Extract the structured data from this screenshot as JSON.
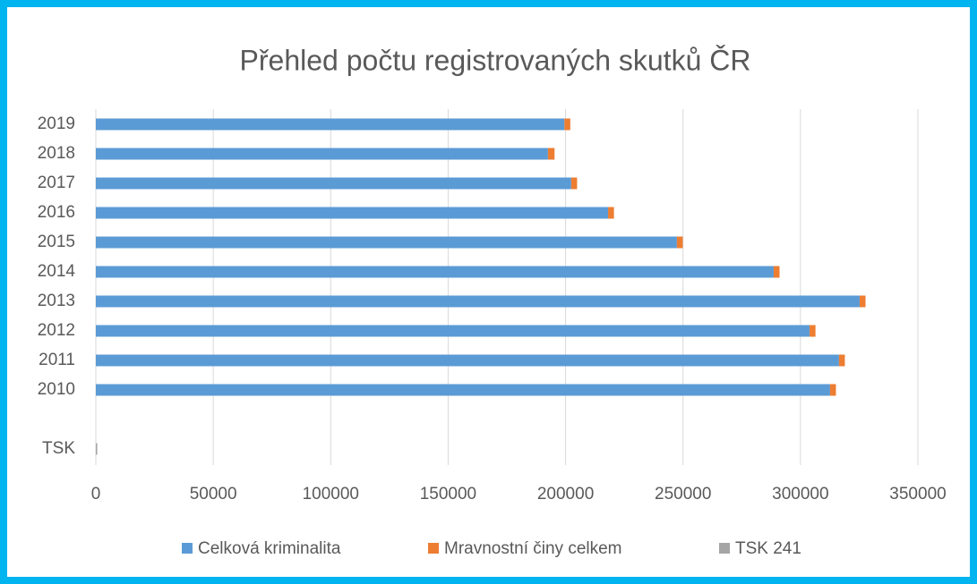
{
  "chart_data": {
    "type": "stacked-barh",
    "title": "Přehled počtu registrovaných skutků ČR",
    "categories": [
      "TSK",
      null,
      "2010",
      "2011",
      "2012",
      "2013",
      "2014",
      "2015",
      "2016",
      "2017",
      "2018",
      "2019"
    ],
    "series": [
      {
        "name": "Celková kriminalita",
        "color": "#5b9bd5",
        "values": [
          null,
          null,
          312600,
          316400,
          303900,
          325200,
          288600,
          247400,
          218100,
          202400,
          192500,
          199500
        ]
      },
      {
        "name": "Mravnostní činy celkem",
        "color": "#ed7d31",
        "values": [
          null,
          null,
          2500,
          2500,
          2500,
          2500,
          2500,
          2500,
          2500,
          2500,
          2800,
          2500
        ]
      },
      {
        "name": "TSK 241",
        "color": "#a5a5a5",
        "values": [
          600,
          null,
          null,
          null,
          null,
          null,
          null,
          null,
          null,
          null,
          null,
          null
        ]
      }
    ],
    "xlim": [
      0,
      350000
    ],
    "xticks": [
      0,
      50000,
      100000,
      150000,
      200000,
      250000,
      300000,
      350000
    ],
    "grid": true,
    "legend": "bottom"
  }
}
